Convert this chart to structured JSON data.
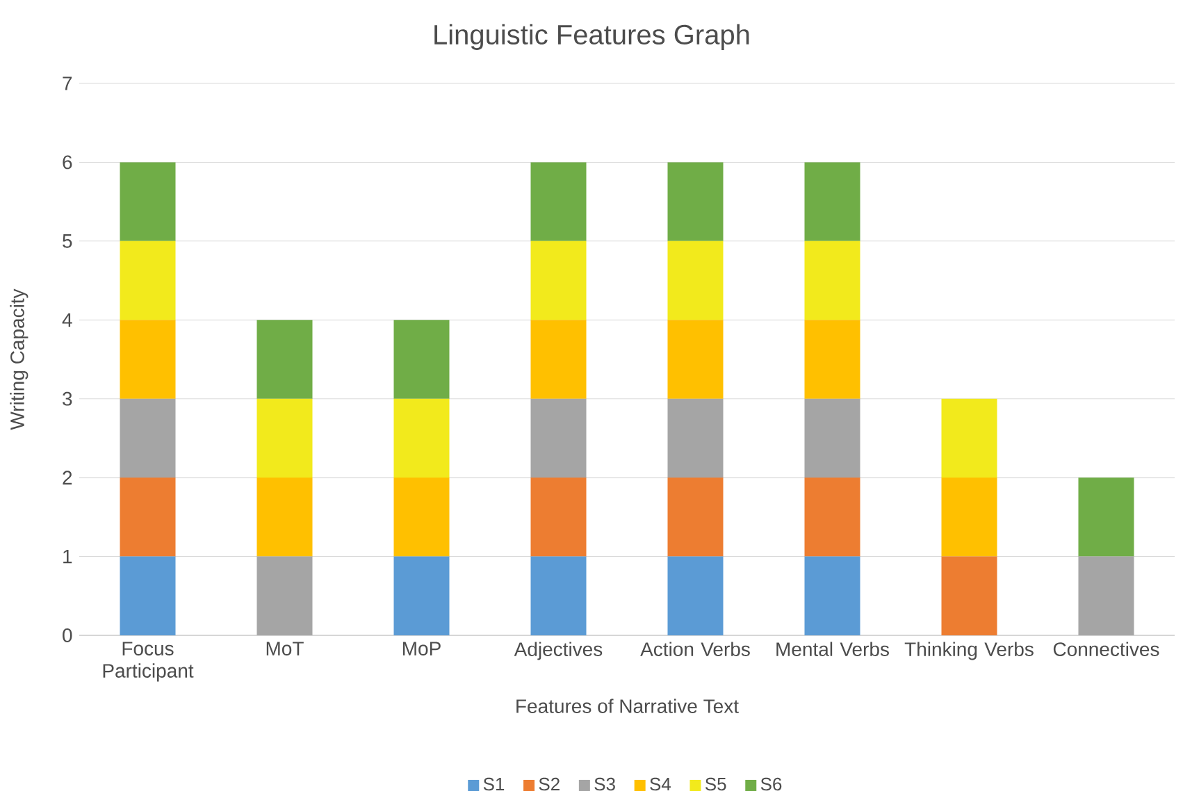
{
  "chart_data": {
    "type": "bar",
    "title": "Linguistic Features Graph",
    "xlabel": "Features of Narrative Text",
    "ylabel": "Writing Capacity",
    "categories": [
      "Focus Participant",
      "MoT",
      "MoP",
      "Adjectives",
      "Action Verbs",
      "Mental Verbs",
      "Thinking Verbs",
      "Connectives"
    ],
    "series": [
      {
        "name": "S1",
        "color": "#5b9bd5",
        "values": [
          1,
          0,
          1,
          1,
          1,
          1,
          0,
          0
        ]
      },
      {
        "name": "S2",
        "color": "#ed7d31",
        "values": [
          1,
          0,
          0,
          1,
          1,
          1,
          1,
          0
        ]
      },
      {
        "name": "S3",
        "color": "#a5a5a5",
        "values": [
          1,
          1,
          0,
          1,
          1,
          1,
          0,
          1
        ]
      },
      {
        "name": "S4",
        "color": "#ffc000",
        "values": [
          1,
          1,
          1,
          1,
          1,
          1,
          1,
          0
        ]
      },
      {
        "name": "S5",
        "color": "#f2ea1c",
        "values": [
          1,
          1,
          1,
          1,
          1,
          1,
          1,
          0
        ]
      },
      {
        "name": "S6",
        "color": "#70ad47",
        "values": [
          1,
          1,
          1,
          1,
          1,
          1,
          0,
          1
        ]
      }
    ],
    "stacked": true,
    "ylim": [
      0,
      7
    ],
    "yticks": [
      0,
      1,
      2,
      3,
      4,
      5,
      6,
      7
    ],
    "grid": "y",
    "legend": "bottom"
  }
}
